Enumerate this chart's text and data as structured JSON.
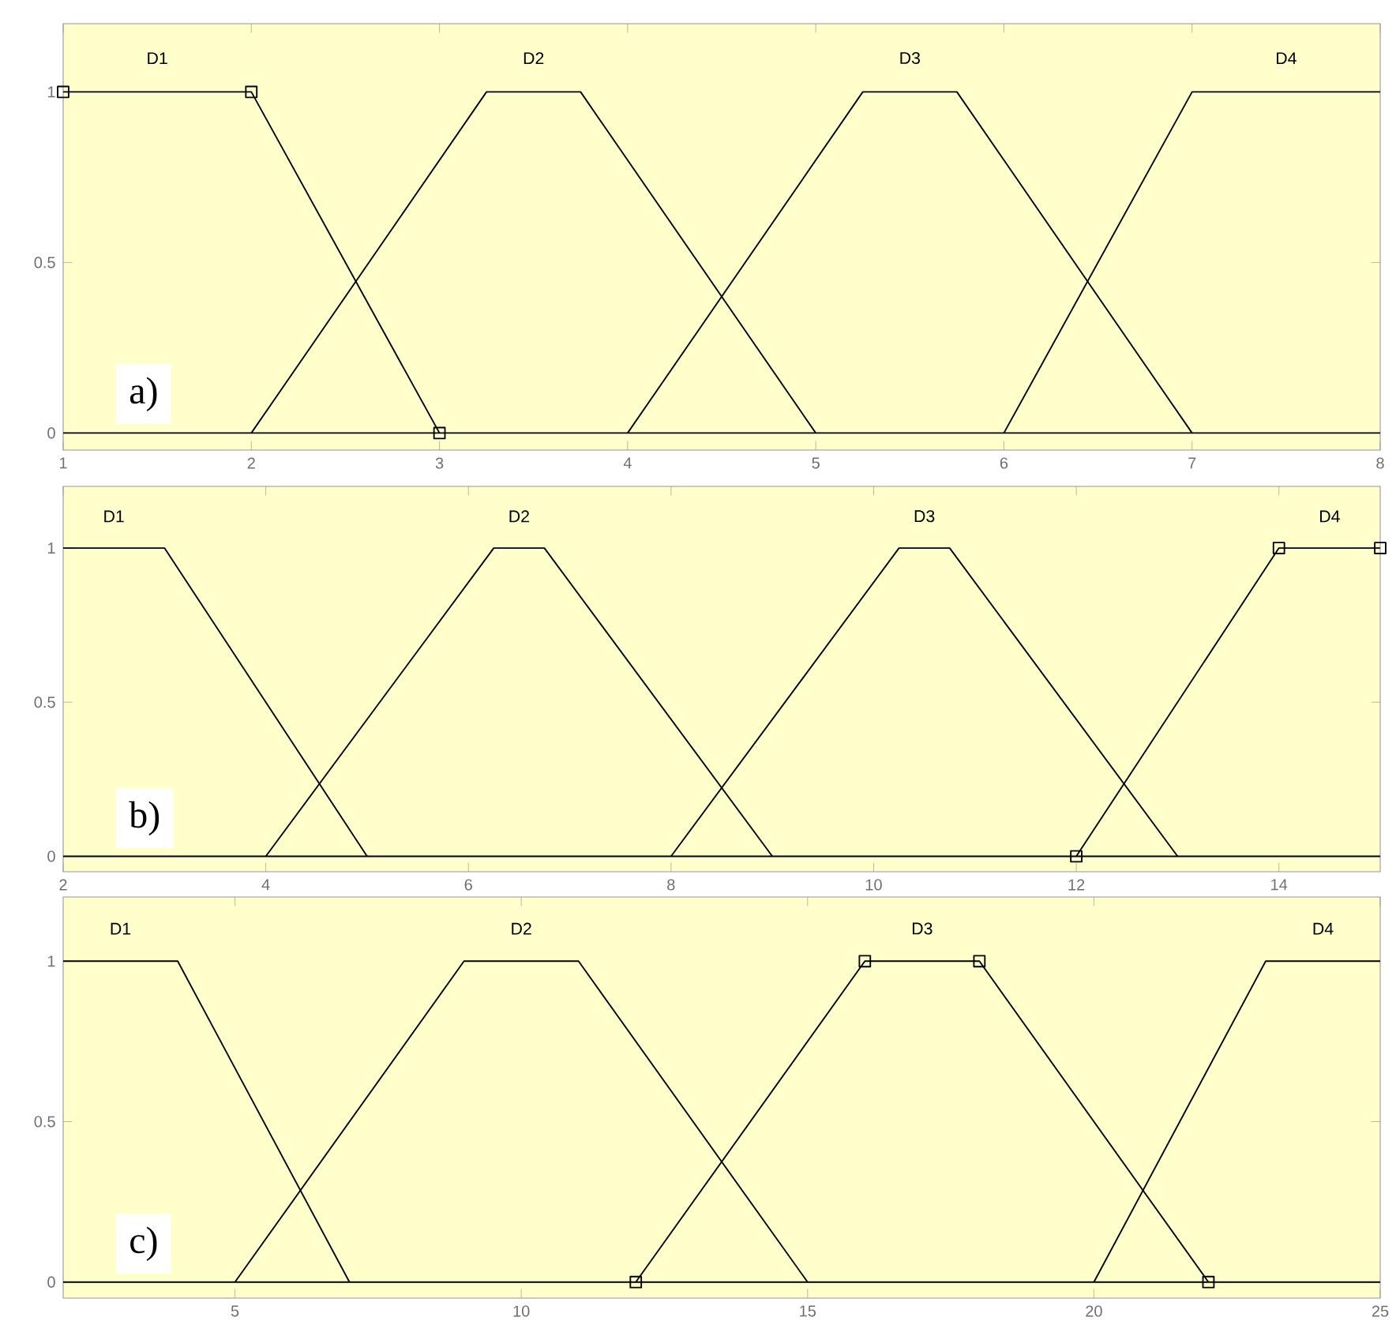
{
  "chart_data": [
    {
      "type": "line",
      "xlim": [
        1,
        8
      ],
      "ylim": [
        -0.05,
        1.2
      ],
      "xticks": [
        1,
        2,
        3,
        4,
        5,
        6,
        7,
        8
      ],
      "yticks": [
        0,
        0.5,
        1
      ],
      "series": [
        {
          "name": "D1",
          "color": "#000000",
          "marker": "square",
          "x": [
            1,
            2,
            3
          ],
          "values": [
            1,
            1,
            0
          ]
        },
        {
          "name": "D2",
          "color": "#000000",
          "x": [
            2,
            3.25,
            3.75,
            5
          ],
          "values": [
            0,
            1,
            1,
            0
          ]
        },
        {
          "name": "D3",
          "color": "#000000",
          "x": [
            4,
            5.25,
            5.75,
            7
          ],
          "values": [
            0,
            1,
            1,
            0
          ]
        },
        {
          "name": "D4",
          "color": "#000000",
          "x": [
            6,
            7,
            8
          ],
          "values": [
            0,
            1,
            1
          ]
        }
      ],
      "ref_lines": [
        {
          "axis": "y",
          "value": 0,
          "color": "#000000"
        }
      ],
      "annotations": [
        "a)"
      ]
    },
    {
      "type": "line",
      "xlim": [
        2,
        15
      ],
      "ylim": [
        -0.05,
        1.2
      ],
      "xticks": [
        2,
        4,
        6,
        8,
        10,
        12,
        14
      ],
      "yticks": [
        0,
        0.5,
        1
      ],
      "series": [
        {
          "name": "D1",
          "color": "#000000",
          "x": [
            2,
            3,
            5
          ],
          "values": [
            1,
            1,
            0
          ]
        },
        {
          "name": "D2",
          "color": "#000000",
          "x": [
            4,
            6.25,
            6.75,
            9
          ],
          "values": [
            0,
            1,
            1,
            0
          ]
        },
        {
          "name": "D3",
          "color": "#000000",
          "x": [
            8,
            10.25,
            10.75,
            13
          ],
          "values": [
            0,
            1,
            1,
            0
          ]
        },
        {
          "name": "D4",
          "color": "#000000",
          "marker": "square",
          "x": [
            12,
            14,
            15
          ],
          "values": [
            0,
            1,
            1
          ]
        }
      ],
      "ref_lines": [
        {
          "axis": "y",
          "value": 0,
          "color": "#000000"
        }
      ],
      "annotations": [
        "b)"
      ]
    },
    {
      "type": "line",
      "xlim": [
        2,
        25
      ],
      "ylim": [
        -0.05,
        1.2
      ],
      "xticks": [
        5,
        10,
        15,
        20,
        25
      ],
      "yticks": [
        0,
        0.5,
        1
      ],
      "series": [
        {
          "name": "D1",
          "color": "#000000",
          "x": [
            2,
            4,
            7
          ],
          "values": [
            1,
            1,
            0
          ]
        },
        {
          "name": "D2",
          "color": "#000000",
          "x": [
            5,
            9,
            11,
            15
          ],
          "values": [
            0,
            1,
            1,
            0
          ]
        },
        {
          "name": "D3",
          "color": "#000000",
          "marker": "square",
          "x": [
            12,
            16,
            18,
            22
          ],
          "values": [
            0,
            1,
            1,
            0
          ]
        },
        {
          "name": "D4",
          "color": "#000000",
          "x": [
            20,
            23,
            25
          ],
          "values": [
            0,
            1,
            1
          ]
        }
      ],
      "ref_lines": [
        {
          "axis": "y",
          "value": 0,
          "color": "#000000"
        }
      ],
      "annotations": [
        "c)"
      ]
    }
  ]
}
